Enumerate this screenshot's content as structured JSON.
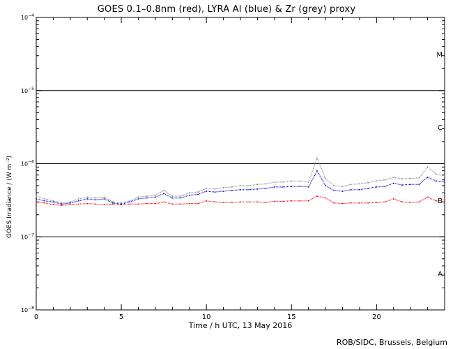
{
  "title": "GOES 0.1–0.8nm (red), LYRA Al (blue) & Zr (grey) proxy",
  "credit": "ROB/SIDC, Brussels, Belgium",
  "chart_data": {
    "type": "scatter",
    "title": "GOES 0.1–0.8nm (red), LYRA Al (blue) & Zr (grey) proxy",
    "xlabel": "Time / h UTC, 13 May 2016",
    "ylabel": "GOES Irradiance / (W m⁻²)",
    "xlim": [
      0,
      24
    ],
    "ylim": [
      1e-08,
      0.0001
    ],
    "yscale": "log",
    "x_ticks": [
      0,
      5,
      10,
      15,
      20
    ],
    "y_ticks": [
      {
        "value": 1e-08,
        "base": "10",
        "exp": "−8"
      },
      {
        "value": 1e-07,
        "base": "10",
        "exp": "−7"
      },
      {
        "value": 1e-06,
        "base": "10",
        "exp": "−6"
      },
      {
        "value": 1e-05,
        "base": "10",
        "exp": "−5"
      },
      {
        "value": 0.0001,
        "base": "10",
        "exp": "−4"
      }
    ],
    "flare_class_lines": [
      1e-07,
      1e-06,
      1e-05
    ],
    "flare_classes": [
      {
        "label": "A",
        "value": 3.16e-08
      },
      {
        "label": "B",
        "value": 3.16e-07
      },
      {
        "label": "C",
        "value": 3.16e-06
      },
      {
        "label": "M",
        "value": 3.16e-05
      }
    ],
    "series": [
      {
        "color": "#ff0000",
        "x": [
          0,
          0.5,
          1.0,
          1.5,
          2.0,
          2.5,
          3.0,
          3.5,
          4.0,
          4.5,
          5.0,
          5.5,
          6.0,
          6.5,
          7.0,
          7.5,
          8.0,
          8.5,
          9.0,
          9.5,
          10.0,
          10.5,
          11.0,
          11.5,
          12.0,
          12.5,
          13.0,
          13.5,
          14.0,
          14.5,
          15.0,
          15.5,
          16.0,
          16.5,
          17.0,
          17.5,
          18.0,
          18.5,
          19.0,
          19.5,
          20.0,
          20.5,
          21.0,
          21.5,
          22.0,
          22.5,
          23.0,
          23.5,
          24.0
        ],
        "y": [
          3e-07,
          2.9e-07,
          2.75e-07,
          2.7e-07,
          2.75e-07,
          2.8e-07,
          2.85e-07,
          2.8e-07,
          2.75e-07,
          2.8e-07,
          2.75e-07,
          2.8e-07,
          2.8e-07,
          2.85e-07,
          2.85e-07,
          3e-07,
          2.8e-07,
          2.8e-07,
          2.85e-07,
          2.85e-07,
          3.1e-07,
          3e-07,
          2.95e-07,
          2.95e-07,
          3e-07,
          3e-07,
          3e-07,
          2.95e-07,
          3.05e-07,
          3.05e-07,
          3.1e-07,
          3.1e-07,
          3.1e-07,
          3.6e-07,
          3.4e-07,
          2.9e-07,
          2.85e-07,
          2.9e-07,
          2.9e-07,
          2.9e-07,
          2.95e-07,
          3e-07,
          3.3e-07,
          3e-07,
          2.95e-07,
          3e-07,
          3.5e-07,
          3.1e-07,
          3.2e-07
        ]
      },
      {
        "color": "#0000cc",
        "x": [
          0,
          0.5,
          1.0,
          1.5,
          2.0,
          2.5,
          3.0,
          3.5,
          4.0,
          4.5,
          5.0,
          5.5,
          6.0,
          6.5,
          7.0,
          7.5,
          8.0,
          8.5,
          9.0,
          9.5,
          10.0,
          10.5,
          11.0,
          11.5,
          12.0,
          12.5,
          13.0,
          13.5,
          14.0,
          14.5,
          15.0,
          15.5,
          16.0,
          16.5,
          17.0,
          17.5,
          18.0,
          18.5,
          19.0,
          19.5,
          20.0,
          20.5,
          21.0,
          21.5,
          22.0,
          22.5,
          23.0,
          23.5,
          24.0
        ],
        "y": [
          3.3e-07,
          3.1e-07,
          3e-07,
          2.8e-07,
          2.9e-07,
          3.1e-07,
          3.3e-07,
          3.2e-07,
          3.3e-07,
          2.9e-07,
          2.8e-07,
          3e-07,
          3.3e-07,
          3.4e-07,
          3.5e-07,
          3.9e-07,
          3.4e-07,
          3.4e-07,
          3.7e-07,
          3.8e-07,
          4.2e-07,
          4.1e-07,
          4.2e-07,
          4.3e-07,
          4.4e-07,
          4.4e-07,
          4.5e-07,
          4.6e-07,
          4.8e-07,
          4.8e-07,
          4.9e-07,
          4.9e-07,
          4.8e-07,
          8e-07,
          5e-07,
          4.3e-07,
          4.2e-07,
          4.4e-07,
          4.4e-07,
          4.6e-07,
          4.8e-07,
          4.9e-07,
          5.4e-07,
          5.1e-07,
          5.2e-07,
          5.2e-07,
          6.5e-07,
          5.8e-07,
          5.6e-07
        ]
      },
      {
        "color": "#888888",
        "x": [
          0,
          0.5,
          1.0,
          1.5,
          2.0,
          2.5,
          3.0,
          3.5,
          4.0,
          4.5,
          5.0,
          5.5,
          6.0,
          6.5,
          7.0,
          7.5,
          8.0,
          8.5,
          9.0,
          9.5,
          10.0,
          10.5,
          11.0,
          11.5,
          12.0,
          12.5,
          13.0,
          13.5,
          14.0,
          14.5,
          15.0,
          15.5,
          16.0,
          16.5,
          17.0,
          17.5,
          18.0,
          18.5,
          19.0,
          19.5,
          20.0,
          20.5,
          21.0,
          21.5,
          22.0,
          22.5,
          23.0,
          23.5,
          24.0
        ],
        "y": [
          3.6e-07,
          3.3e-07,
          3.1e-07,
          2.9e-07,
          3e-07,
          3.3e-07,
          3.5e-07,
          3.4e-07,
          3.5e-07,
          3e-07,
          2.9e-07,
          3.1e-07,
          3.5e-07,
          3.6e-07,
          3.7e-07,
          4.3e-07,
          3.6e-07,
          3.6e-07,
          4e-07,
          4.1e-07,
          4.6e-07,
          4.5e-07,
          4.7e-07,
          4.8e-07,
          5e-07,
          5e-07,
          5.2e-07,
          5.3e-07,
          5.6e-07,
          5.6e-07,
          5.8e-07,
          5.8e-07,
          5.6e-07,
          1.2e-06,
          6.2e-07,
          5e-07,
          4.9e-07,
          5.2e-07,
          5.3e-07,
          5.5e-07,
          5.8e-07,
          6e-07,
          6.5e-07,
          6.2e-07,
          6.3e-07,
          6.4e-07,
          9e-07,
          7.2e-07,
          6.8e-07
        ]
      }
    ]
  }
}
